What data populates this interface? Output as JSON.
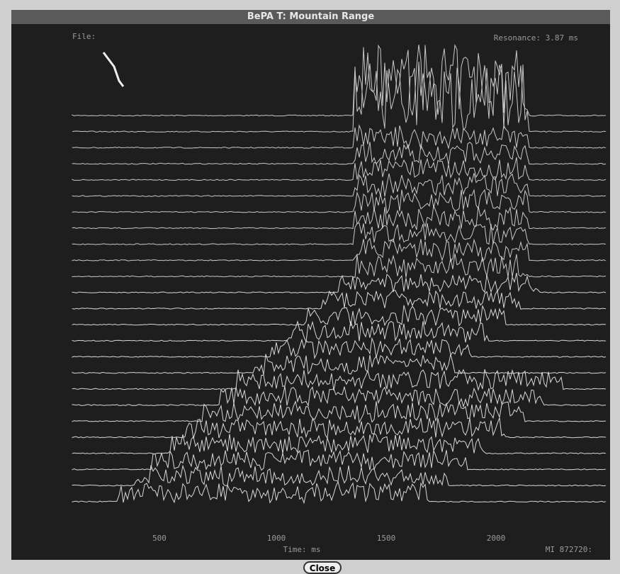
{
  "window": {
    "title": "BePA T: Mountain Range",
    "close_button": "Close"
  },
  "plot": {
    "file_label": "File:",
    "status": "Resonance: 3.87 ms",
    "x_tick_labels": [
      "500",
      "1000",
      "1500",
      "2000"
    ],
    "x_axis_label": "Time: ms",
    "id_label": "MI 872720:"
  }
}
